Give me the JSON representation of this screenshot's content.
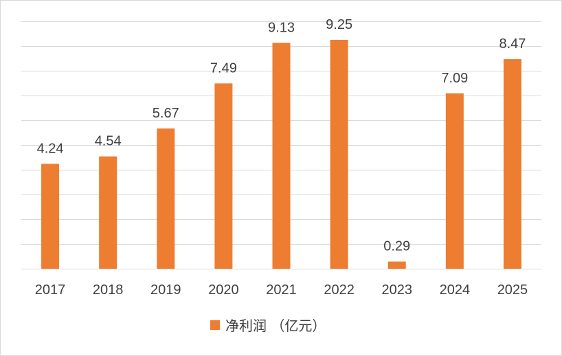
{
  "chart_data": {
    "type": "bar",
    "categories": [
      "2017",
      "2018",
      "2019",
      "2020",
      "2021",
      "2022",
      "2023",
      "2024",
      "2025"
    ],
    "series": [
      {
        "name": "净利润 （亿元）",
        "values": [
          4.24,
          4.54,
          5.67,
          7.49,
          9.13,
          9.25,
          0.29,
          7.09,
          8.47
        ],
        "color": "#ed7d31"
      }
    ],
    "data_labels": [
      "4.24",
      "4.54",
      "5.67",
      "7.49",
      "9.13",
      "9.25",
      "0.29",
      "7.09",
      "8.47"
    ],
    "title": "",
    "xlabel": "",
    "ylabel": "",
    "ylim": [
      0,
      10
    ],
    "y_gridline_step": 1,
    "grid": true,
    "y_axis_labels_shown": false,
    "legend_position": "bottom",
    "colors": {
      "bar": "#ed7d31",
      "grid": "#d9d9d9",
      "text": "#404040"
    }
  }
}
